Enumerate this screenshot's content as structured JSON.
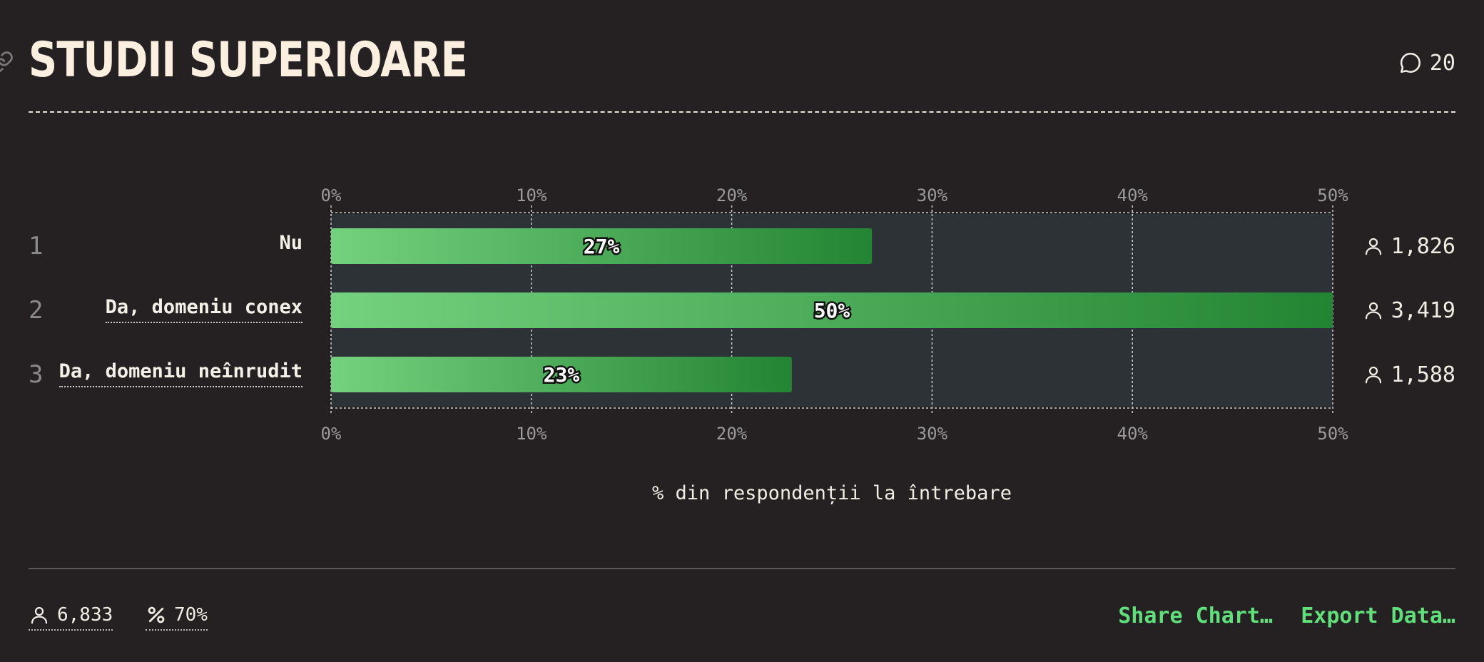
{
  "header": {
    "title": "STUDII SUPERIOARE",
    "comment_count": "20"
  },
  "chart_data": {
    "type": "bar",
    "orientation": "horizontal",
    "categories": [
      "Nu",
      "Da, domeniu conex",
      "Da, domeniu neînrudit"
    ],
    "values": [
      27,
      50,
      23
    ],
    "value_labels": [
      "27%",
      "50%",
      "23%"
    ],
    "row_numbers": [
      "1",
      "2",
      "3"
    ],
    "respondent_counts": [
      "1,826",
      "3,419",
      "1,588"
    ],
    "xlim": [
      0,
      50
    ],
    "xticks": [
      0,
      10,
      20,
      30,
      40,
      50
    ],
    "xtick_labels": [
      "0%",
      "10%",
      "20%",
      "30%",
      "40%",
      "50%"
    ],
    "xlabel": "% din respondenții la întrebare",
    "grid": true,
    "colors": {
      "bar_start": "#74d27e",
      "bar_end": "#238433",
      "track": "#2c3236"
    }
  },
  "footer": {
    "total_respondents": "6,833",
    "response_rate": "70%",
    "share_label": "Share Chart…",
    "export_label": "Export Data…"
  }
}
